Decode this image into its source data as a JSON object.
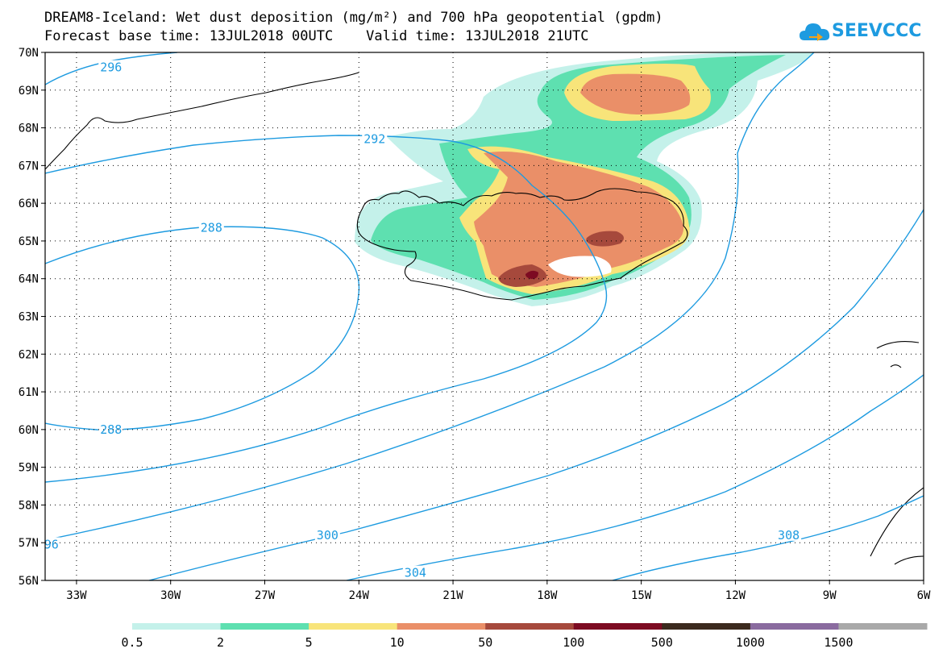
{
  "title_line1": "DREAM8-Iceland: Wet dust deposition (mg/m²) and 700 hPa geopotential (gpdm)",
  "title_line2": "Forecast base time: 13JUL2018 00UTC    Valid time: 13JUL2018 21UTC",
  "logo_text": "SEEVCCC",
  "colors": {
    "contour": "#1e9be0",
    "coast": "#000000",
    "grid": "#000000",
    "logo": "#1e9be0"
  },
  "map": {
    "lon_range": [
      -34,
      -6
    ],
    "lat_range": [
      56,
      70
    ],
    "lon_ticks": [
      {
        "value": -33,
        "label": "33W"
      },
      {
        "value": -30,
        "label": "30W"
      },
      {
        "value": -27,
        "label": "27W"
      },
      {
        "value": -24,
        "label": "24W"
      },
      {
        "value": -21,
        "label": "21W"
      },
      {
        "value": -18,
        "label": "18W"
      },
      {
        "value": -15,
        "label": "15W"
      },
      {
        "value": -12,
        "label": "12W"
      },
      {
        "value": -9,
        "label": "9W"
      },
      {
        "value": -6,
        "label": "6W"
      }
    ],
    "lat_ticks": [
      {
        "value": 70,
        "label": "70N"
      },
      {
        "value": 69,
        "label": "69N"
      },
      {
        "value": 68,
        "label": "68N"
      },
      {
        "value": 67,
        "label": "67N"
      },
      {
        "value": 66,
        "label": "66N"
      },
      {
        "value": 65,
        "label": "65N"
      },
      {
        "value": 64,
        "label": "64N"
      },
      {
        "value": 63,
        "label": "63N"
      },
      {
        "value": 62,
        "label": "62N"
      },
      {
        "value": 61,
        "label": "61N"
      },
      {
        "value": 60,
        "label": "60N"
      },
      {
        "value": 59,
        "label": "59N"
      },
      {
        "value": 58,
        "label": "58N"
      },
      {
        "value": 57,
        "label": "57N"
      },
      {
        "value": 56,
        "label": "56N"
      }
    ],
    "contour_labels": [
      {
        "text": "296",
        "lon": -31.9,
        "lat": 69.6
      },
      {
        "text": "292",
        "lon": -23.5,
        "lat": 67.7
      },
      {
        "text": "288",
        "lon": -28.7,
        "lat": 65.35
      },
      {
        "text": "288",
        "lon": -31.9,
        "lat": 60.0
      },
      {
        "text": "96",
        "lon": -33.8,
        "lat": 56.95
      },
      {
        "text": "300",
        "lon": -25.0,
        "lat": 57.2
      },
      {
        "text": "304",
        "lon": -22.2,
        "lat": 56.2
      },
      {
        "text": "308",
        "lon": -10.3,
        "lat": 57.2
      }
    ]
  },
  "legend": {
    "bins": [
      {
        "label": "0.5",
        "color": "#c4f1ea"
      },
      {
        "label": "2",
        "color": "#5ee0b0"
      },
      {
        "label": "5",
        "color": "#f8e47a"
      },
      {
        "label": "10",
        "color": "#ea8f68"
      },
      {
        "label": "50",
        "color": "#a6493c"
      },
      {
        "label": "100",
        "color": "#7d0b22"
      },
      {
        "label": "500",
        "color": "#3b2a1e"
      },
      {
        "label": "1000",
        "color": "#8a6b9f"
      },
      {
        "label": "1500",
        "color": "#a9a9a9"
      }
    ]
  }
}
